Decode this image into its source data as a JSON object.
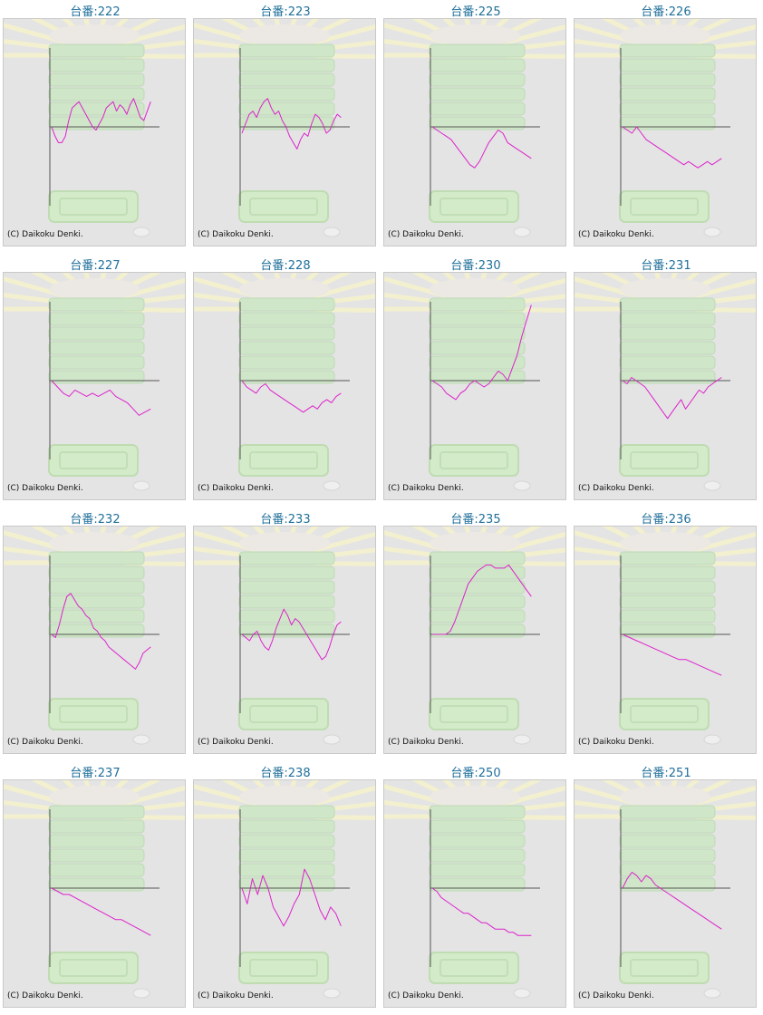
{
  "copyright": "(C) Daikoku Denki.",
  "colors": {
    "line": "#dd22cc",
    "title": "#1f6f9a",
    "panel_bg": "#e4e4e4",
    "axis": "#555555"
  },
  "chart_data": [
    {
      "type": "line",
      "title": "台番:222",
      "y": [
        0,
        -3,
        -5,
        -5,
        -3,
        2,
        6,
        7,
        8,
        6,
        4,
        2,
        0,
        -1,
        1,
        3,
        6,
        7,
        8,
        5,
        7,
        6,
        4,
        7,
        9,
        6,
        3,
        2,
        5,
        8
      ]
    },
    {
      "type": "line",
      "title": "台番:223",
      "y": [
        -2,
        1,
        4,
        5,
        3,
        6,
        8,
        9,
        6,
        4,
        5,
        2,
        0,
        -3,
        -5,
        -7,
        -4,
        -2,
        -3,
        1,
        4,
        3,
        1,
        -2,
        -1,
        2,
        4,
        3
      ]
    },
    {
      "type": "line",
      "title": "台番:225",
      "y": [
        0,
        -1,
        -2,
        -3,
        -4,
        -6,
        -8,
        -10,
        -12,
        -13,
        -11,
        -8,
        -5,
        -3,
        -1,
        -2,
        -5,
        -6,
        -7,
        -8,
        -9,
        -10
      ]
    },
    {
      "type": "line",
      "title": "台番:226",
      "y": [
        0,
        -1,
        -2,
        0,
        -2,
        -4,
        -5,
        -6,
        -7,
        -8,
        -9,
        -10,
        -11,
        -12,
        -11,
        -12,
        -13,
        -12,
        -11,
        -12,
        -11,
        -10
      ]
    },
    {
      "type": "line",
      "title": "台番:227",
      "y": [
        0,
        -2,
        -4,
        -5,
        -3,
        -4,
        -5,
        -4,
        -5,
        -4,
        -3,
        -5,
        -6,
        -7,
        -9,
        -11,
        -10,
        -9
      ]
    },
    {
      "type": "line",
      "title": "台番:228",
      "y": [
        0,
        -2,
        -3,
        -4,
        -2,
        -1,
        -3,
        -4,
        -5,
        -6,
        -7,
        -8,
        -9,
        -10,
        -9,
        -8,
        -9,
        -7,
        -6,
        -7,
        -5,
        -4
      ]
    },
    {
      "type": "line",
      "title": "台番:230",
      "y": [
        0,
        -1,
        -2,
        -4,
        -5,
        -6,
        -4,
        -3,
        -1,
        0,
        -1,
        -2,
        -1,
        1,
        3,
        2,
        0,
        4,
        8,
        14,
        19,
        24
      ]
    },
    {
      "type": "line",
      "title": "台番:231",
      "y": [
        0,
        -1,
        1,
        0,
        -1,
        -2,
        -4,
        -6,
        -8,
        -10,
        -12,
        -10,
        -8,
        -6,
        -9,
        -7,
        -5,
        -3,
        -4,
        -2,
        -1,
        0,
        1
      ]
    },
    {
      "type": "line",
      "title": "台番:232",
      "y": [
        0,
        -1,
        3,
        8,
        12,
        13,
        11,
        9,
        8,
        6,
        5,
        2,
        1,
        -1,
        -2,
        -4,
        -5,
        -6,
        -7,
        -8,
        -9,
        -10,
        -11,
        -9,
        -6,
        -5,
        -4
      ]
    },
    {
      "type": "line",
      "title": "台番:233",
      "y": [
        0,
        -1,
        -2,
        0,
        1,
        -2,
        -4,
        -5,
        -2,
        2,
        5,
        8,
        6,
        3,
        5,
        4,
        2,
        0,
        -2,
        -4,
        -6,
        -8,
        -7,
        -4,
        0,
        3,
        4
      ]
    },
    {
      "type": "line",
      "title": "台番:235",
      "y": [
        0,
        0,
        0,
        0,
        1,
        4,
        8,
        12,
        16,
        18,
        20,
        21,
        22,
        22,
        21,
        21,
        21,
        22,
        20,
        18,
        16,
        14,
        12
      ]
    },
    {
      "type": "line",
      "title": "台番:236",
      "y": [
        0,
        -1,
        -2,
        -3,
        -4,
        -5,
        -6,
        -7,
        -8,
        -8,
        -9,
        -10,
        -11,
        -12,
        -13
      ]
    },
    {
      "type": "line",
      "title": "台番:237",
      "y": [
        0,
        -1,
        -2,
        -2,
        -3,
        -4,
        -5,
        -6,
        -7,
        -8,
        -9,
        -10,
        -10,
        -11,
        -12,
        -13,
        -14,
        -15
      ]
    },
    {
      "type": "line",
      "title": "台番:238",
      "y": [
        0,
        -5,
        3,
        -2,
        4,
        0,
        -6,
        -9,
        -12,
        -9,
        -5,
        -2,
        6,
        3,
        -2,
        -7,
        -10,
        -6,
        -8,
        -12
      ]
    },
    {
      "type": "line",
      "title": "台番:250",
      "y": [
        0,
        -1,
        -3,
        -4,
        -5,
        -6,
        -7,
        -8,
        -8,
        -9,
        -10,
        -11,
        -11,
        -12,
        -13,
        -13,
        -13,
        -14,
        -14,
        -15,
        -15,
        -15,
        -15
      ]
    },
    {
      "type": "line",
      "title": "台番:251",
      "y": [
        0,
        3,
        5,
        4,
        2,
        4,
        3,
        1,
        0,
        -1,
        -2,
        -3,
        -4,
        -5,
        -6,
        -7,
        -8,
        -9,
        -10,
        -11,
        -12,
        -13
      ]
    }
  ]
}
